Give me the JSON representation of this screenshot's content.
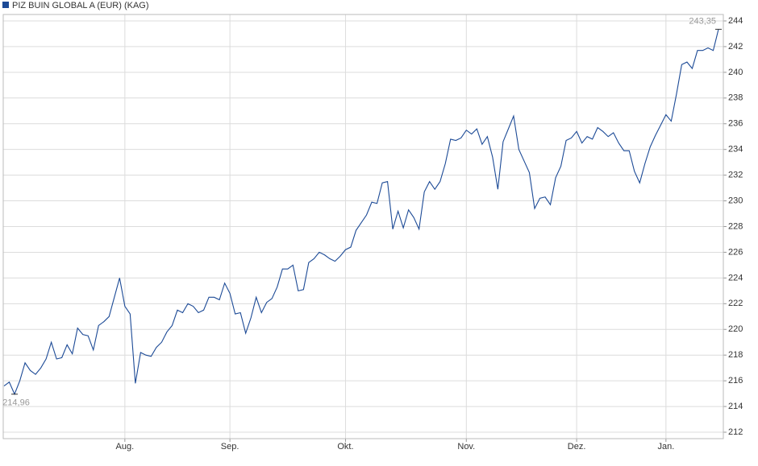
{
  "chart_data": {
    "type": "line",
    "series": [
      {
        "name": "PIZ BUIN GLOBAL A (EUR) (KAG)",
        "color": "#1c4a96",
        "values": [
          215.6,
          215.9,
          214.96,
          216.0,
          217.4,
          216.8,
          216.5,
          217.0,
          217.7,
          219.0,
          217.7,
          217.8,
          218.8,
          218.1,
          220.1,
          219.6,
          219.5,
          218.4,
          220.3,
          220.6,
          221.0,
          222.5,
          224.0,
          221.8,
          221.2,
          215.8,
          218.2,
          218.0,
          217.9,
          218.6,
          219.0,
          219.8,
          220.3,
          221.5,
          221.3,
          222.0,
          221.8,
          221.3,
          221.5,
          222.5,
          222.5,
          222.3,
          223.6,
          222.8,
          221.2,
          221.3,
          219.7,
          220.9,
          222.5,
          221.3,
          222.1,
          222.4,
          223.3,
          224.7,
          224.7,
          225.0,
          223.0,
          223.1,
          225.2,
          225.5,
          226.0,
          225.8,
          225.5,
          225.3,
          225.7,
          226.2,
          226.4,
          227.7,
          228.3,
          228.9,
          229.9,
          229.8,
          231.4,
          231.5,
          227.8,
          229.2,
          227.9,
          229.3,
          228.7,
          227.8,
          230.7,
          231.5,
          230.9,
          231.5,
          232.9,
          234.8,
          234.7,
          234.9,
          235.5,
          235.2,
          235.6,
          234.4,
          235.0,
          233.4,
          230.9,
          234.6,
          235.6,
          236.6,
          234.0,
          233.1,
          232.2,
          229.4,
          230.2,
          230.3,
          229.7,
          231.8,
          232.7,
          234.7,
          234.9,
          235.4,
          234.5,
          235.0,
          234.8,
          235.7,
          235.4,
          235.0,
          235.3,
          234.5,
          233.9,
          233.9,
          232.3,
          231.4,
          232.9,
          234.2,
          235.1,
          235.9,
          236.7,
          236.2,
          238.3,
          240.6,
          240.8,
          240.3,
          241.7,
          241.7,
          241.9,
          241.7,
          243.35
        ],
        "value_labels": [
          null,
          null,
          "214,96",
          null,
          null,
          null,
          null,
          null,
          null,
          null,
          null,
          null,
          null,
          null,
          null,
          null,
          null,
          null,
          null,
          null,
          null,
          null,
          null,
          null,
          null,
          null,
          null,
          null,
          null,
          null,
          null,
          null,
          null,
          null,
          null,
          null,
          null,
          null,
          null,
          null,
          null,
          null,
          null,
          null,
          null,
          null,
          null,
          null,
          null,
          null,
          null,
          null,
          null,
          null,
          null,
          null,
          null,
          null,
          null,
          null,
          null,
          null,
          null,
          null,
          null,
          null,
          null,
          null,
          null,
          null,
          null,
          null,
          null,
          null,
          null,
          null,
          null,
          null,
          null,
          null,
          null,
          null,
          null,
          null,
          null,
          null,
          null,
          null,
          null,
          null,
          null,
          null,
          null,
          null,
          null,
          null,
          null,
          null,
          null,
          null,
          null,
          null,
          null,
          null,
          null,
          null,
          null,
          null,
          null,
          null,
          null,
          null,
          null,
          null,
          null,
          null,
          null,
          null,
          null,
          null,
          null,
          null,
          null,
          null,
          null,
          null,
          null,
          null,
          null,
          null,
          null,
          null,
          null,
          null,
          null,
          null,
          "243,35"
        ]
      }
    ],
    "categories": [
      null,
      null,
      null,
      null,
      null,
      null,
      null,
      null,
      null,
      null,
      null,
      null,
      null,
      null,
      null,
      null,
      null,
      null,
      null,
      null,
      null,
      null,
      null,
      "Aug.",
      null,
      null,
      null,
      null,
      null,
      null,
      null,
      null,
      null,
      null,
      null,
      null,
      null,
      null,
      null,
      null,
      null,
      null,
      null,
      "Sep.",
      null,
      null,
      null,
      null,
      null,
      null,
      null,
      null,
      null,
      null,
      null,
      null,
      null,
      null,
      null,
      null,
      null,
      null,
      null,
      null,
      null,
      "Okt.",
      null,
      null,
      null,
      null,
      null,
      null,
      null,
      null,
      null,
      null,
      null,
      null,
      null,
      null,
      null,
      null,
      null,
      null,
      null,
      null,
      null,
      null,
      "Nov.",
      null,
      null,
      null,
      null,
      null,
      null,
      null,
      null,
      null,
      null,
      null,
      null,
      null,
      null,
      null,
      null,
      null,
      null,
      null,
      null,
      "Dez.",
      null,
      null,
      null,
      null,
      null,
      null,
      null,
      null,
      null,
      null,
      null,
      null,
      null,
      null,
      null,
      null,
      "Jan.",
      null,
      null,
      null,
      null,
      null,
      null,
      null,
      null,
      null,
      null
    ],
    "ylim": [
      211.5,
      244.5
    ],
    "yticks": [
      212,
      214,
      216,
      218,
      220,
      222,
      224,
      226,
      228,
      230,
      232,
      234,
      236,
      238,
      240,
      242,
      244
    ],
    "grid": true
  }
}
